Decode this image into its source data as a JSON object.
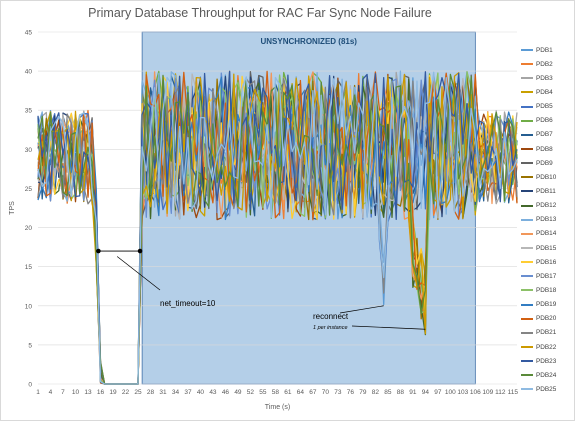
{
  "chart_data": {
    "type": "line",
    "title": "Primary Database Throughput for RAC Far Sync Node Failure",
    "xlabel": "Time (s)",
    "ylabel": "TPS",
    "ylim": [
      0,
      45
    ],
    "yticks": [
      0,
      5,
      10,
      15,
      20,
      25,
      30,
      35,
      40,
      45
    ],
    "xlim": [
      1,
      116
    ],
    "xtick_labels": [
      "1",
      "4",
      "7",
      "10",
      "13",
      "16",
      "19",
      "22",
      "25",
      "28",
      "31",
      "34",
      "37",
      "40",
      "43",
      "46",
      "49",
      "52",
      "55",
      "58",
      "61",
      "64",
      "67",
      "70",
      "73",
      "76",
      "79",
      "82",
      "85",
      "88",
      "91",
      "94",
      "97",
      "100",
      "103",
      "106",
      "109",
      "112",
      "115"
    ],
    "grid": true,
    "legend_position": "right",
    "shaded_region": {
      "x_start": 26,
      "x_end": 106,
      "label": "UNSYNCHRONIZED (81s)",
      "color": "#b4cfe8"
    },
    "annotations": [
      {
        "text": "net_timeout=10",
        "from_x": 15.5,
        "to_x": 25.5,
        "y": 17
      },
      {
        "text": "reconnect",
        "subtext": "1 per instance",
        "targets": [
          [
            84,
            10
          ],
          [
            94,
            7
          ]
        ]
      }
    ],
    "series_names": [
      "PDB1",
      "PDB2",
      "PDB3",
      "PDB4",
      "PDB5",
      "PDB6",
      "PDB7",
      "PDB8",
      "PDB9",
      "PDB10",
      "PDB11",
      "PDB12",
      "PDB13",
      "PDB14",
      "PDB15",
      "PDB16",
      "PDB17",
      "PDB18",
      "PDB19",
      "PDB20",
      "PDB21",
      "PDB22",
      "PDB23",
      "PDB24",
      "PDB25"
    ],
    "series_colors": [
      "#5b9bd5",
      "#ed7d31",
      "#a5a5a5",
      "#c9a000",
      "#4472c4",
      "#70ad47",
      "#255e91",
      "#9e480e",
      "#636363",
      "#997300",
      "#264478",
      "#43682b",
      "#7cafdd",
      "#f1975a",
      "#b7b7b7",
      "#ffcd33",
      "#698ed0",
      "#8cc168",
      "#327dc2",
      "#d26012",
      "#848484",
      "#cc9a00",
      "#335aa1",
      "#5a8a39",
      "#8fbbe2"
    ],
    "profile": {
      "normal_range": [
        23,
        37
      ],
      "drop_start": 15,
      "zero_from": 17,
      "zero_to": 25,
      "recover_at": 26,
      "dip1_x": 84,
      "dip1_min": 10,
      "dip2_x": 94,
      "dip2_min": 6
    }
  }
}
